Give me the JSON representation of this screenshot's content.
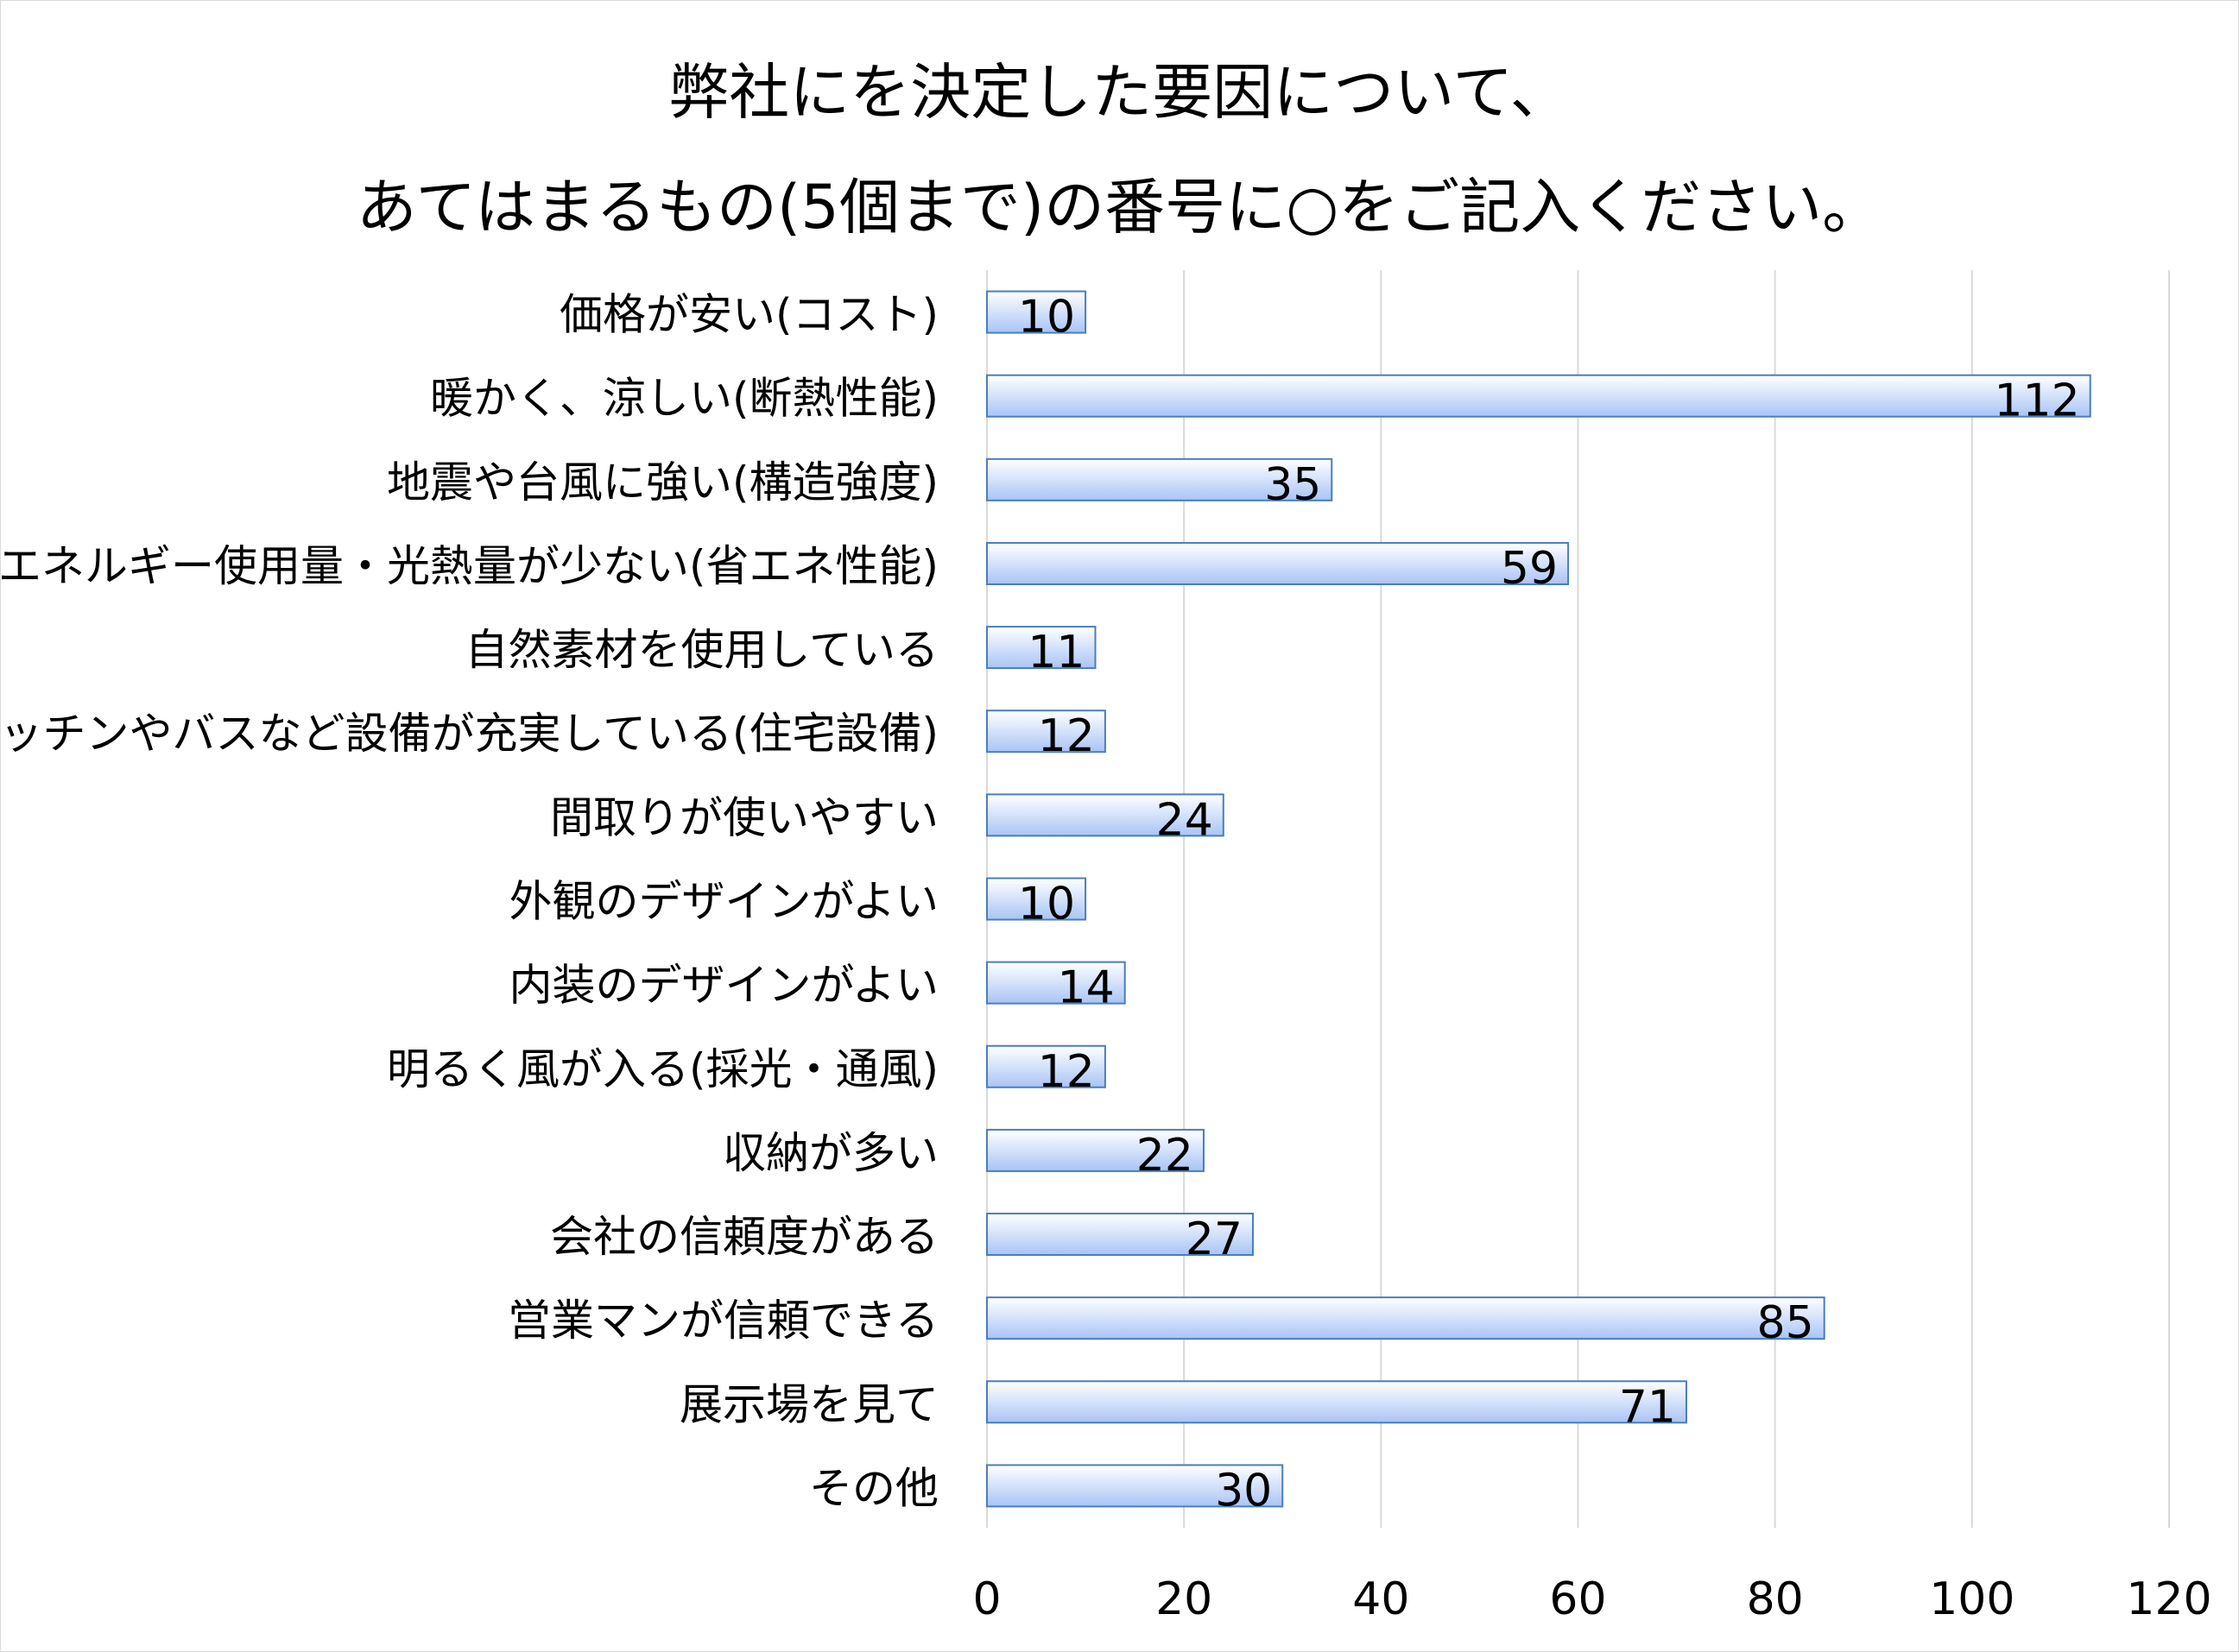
{
  "chart_data": {
    "type": "bar",
    "orientation": "horizontal",
    "title_lines": [
      "弊社にを決定した要因について、",
      "あてはまるもの(5個まで)の番号に○をご記入ください。"
    ],
    "categories": [
      "価格が安い(コスト)",
      "暖かく、涼しい(断熱性能)",
      "地震や台風に強い(構造強度)",
      "エネルギー使用量・光熱量が少ない(省エネ性能)",
      "自然素材を使用している",
      "キッチンやバスなど設備が充実している(住宅設備)",
      "間取りが使いやすい",
      "外観のデザインがよい",
      "内装のデザインがよい",
      "明るく風が入る(採光・通風)",
      "収納が多い",
      "会社の信頼度がある",
      "営業マンが信頼できる",
      "展示場を見て",
      "その他"
    ],
    "values": [
      10,
      112,
      35,
      59,
      11,
      12,
      24,
      10,
      14,
      12,
      22,
      27,
      85,
      71,
      30
    ],
    "xlim": [
      0,
      120
    ],
    "xticks": [
      0,
      20,
      40,
      60,
      80,
      100,
      120
    ],
    "grid": true,
    "legend": "none",
    "colors": {
      "bar_fill_light": "#ffffff",
      "bar_fill_dark": "#a9c4f5",
      "bar_stroke": "#4a7ebb",
      "grid": "#d9d9d9",
      "text": "#000000"
    }
  }
}
